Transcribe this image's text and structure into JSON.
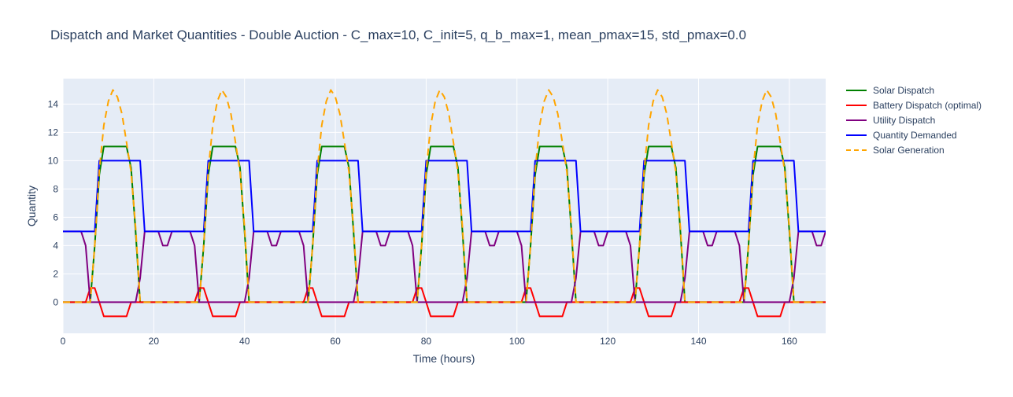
{
  "chart_data": {
    "type": "line",
    "title": "Dispatch and Market Quantities  - Double Auction - C_max=10, C_init=5, q_b_max=1, mean_pmax=15, std_pmax=0.0",
    "xlabel": "Time (hours)",
    "ylabel": "Quantity",
    "xlim": [
      0,
      168
    ],
    "ylim": [
      -2.2,
      15.8
    ],
    "x_ticks": [
      0,
      20,
      40,
      60,
      80,
      100,
      120,
      140,
      160
    ],
    "y_ticks": [
      0,
      2,
      4,
      6,
      8,
      10,
      12,
      14
    ],
    "grid": true,
    "legend_position": "right",
    "colors": {
      "background": "#e5ecf6",
      "grid": "#ffffff",
      "text": "#2a3f5f"
    },
    "daily_pattern_hours": [
      0,
      1,
      2,
      3,
      4,
      5,
      6,
      7,
      8,
      9,
      10,
      11,
      12,
      13,
      14,
      15,
      16,
      17,
      18,
      19,
      20,
      21,
      22,
      23
    ],
    "days": 7,
    "series": [
      {
        "name": "Solar Dispatch",
        "color": "#008000",
        "dash": "solid",
        "daily_values": [
          0,
          0,
          0,
          0,
          0,
          0,
          0,
          4,
          9,
          11,
          11,
          11,
          11,
          11,
          11,
          9.5,
          5,
          0,
          0,
          0,
          0,
          0,
          0,
          0
        ]
      },
      {
        "name": "Battery Dispatch (optimal)",
        "color": "#ff0000",
        "dash": "solid",
        "daily_values": [
          0,
          0,
          0,
          0,
          0,
          0,
          1,
          1,
          0,
          -1,
          -1,
          -1,
          -1,
          -1,
          -1,
          0,
          0,
          0,
          0,
          0,
          0,
          0,
          0,
          0
        ]
      },
      {
        "name": "Utility Dispatch",
        "color": "#800080",
        "dash": "solid",
        "daily_values": [
          5,
          5,
          5,
          5,
          5,
          4,
          0,
          0,
          0,
          0,
          0,
          0,
          0,
          0,
          0,
          0,
          0,
          1.7,
          5,
          5,
          5,
          5,
          4,
          4
        ]
      },
      {
        "name": "Quantity Demanded",
        "color": "#0000ff",
        "dash": "solid",
        "daily_values": [
          5,
          5,
          5,
          5,
          5,
          5,
          5,
          5,
          10,
          10,
          10,
          10,
          10,
          10,
          10,
          10,
          10,
          10,
          5,
          5,
          5,
          5,
          5,
          5
        ]
      },
      {
        "name": "Solar Generation",
        "color": "#ffa500",
        "dash": "dash",
        "daily_values": [
          0,
          0,
          0,
          0,
          0,
          0,
          0,
          4,
          9.3,
          12.5,
          14.2,
          15,
          14.5,
          13.3,
          11.3,
          9.2,
          5.3,
          0,
          0,
          0,
          0,
          0,
          0,
          0
        ]
      }
    ]
  }
}
